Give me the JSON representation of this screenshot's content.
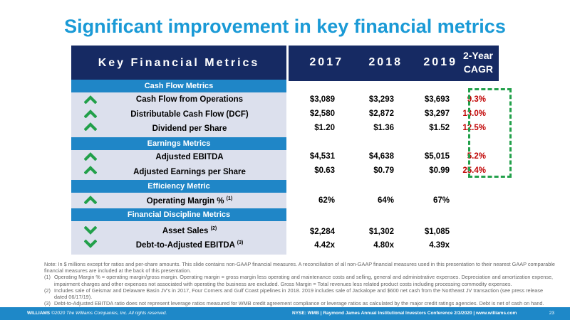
{
  "title": "Significant improvement in key financial metrics",
  "header": {
    "metrics_label": "Key Financial Metrics",
    "years": [
      "2017",
      "2018",
      "2019"
    ],
    "cagr_line1": "2-Year",
    "cagr_line2": "CAGR"
  },
  "sections": {
    "cash_flow": "Cash Flow Metrics",
    "earnings": "Earnings Metrics",
    "efficiency": "Efficiency Metric",
    "discipline": "Financial Discipline Metrics"
  },
  "rows": [
    {
      "label": "Cash Flow from Operations",
      "sup": "",
      "v2017": "$3,089",
      "v2018": "$3,293",
      "v2019": "$3,693",
      "cagr": "9.3%",
      "direction": "up"
    },
    {
      "label": "Distributable Cash Flow (DCF)",
      "sup": "",
      "v2017": "$2,580",
      "v2018": "$2,872",
      "v2019": "$3,297",
      "cagr": "13.0%",
      "direction": "up"
    },
    {
      "label": "Dividend per Share",
      "sup": "",
      "v2017": "$1.20",
      "v2018": "$1.36",
      "v2019": "$1.52",
      "cagr": "12.5%",
      "direction": "up"
    },
    {
      "label": "Adjusted EBITDA",
      "sup": "",
      "v2017": "$4,531",
      "v2018": "$4,638",
      "v2019": "$5,015",
      "cagr": "5.2%",
      "direction": "up"
    },
    {
      "label": "Adjusted Earnings per Share",
      "sup": "",
      "v2017": "$0.63",
      "v2018": "$0.79",
      "v2019": "$0.99",
      "cagr": "25.4%",
      "direction": "up"
    },
    {
      "label": "Operating Margin %",
      "sup": "(1)",
      "v2017": "62%",
      "v2018": "64%",
      "v2019": "67%",
      "cagr": "",
      "direction": "up"
    },
    {
      "label": "Asset Sales",
      "sup": "(2)",
      "v2017": "$2,284",
      "v2018": "$1,302",
      "v2019": "$1,085",
      "cagr": "",
      "direction": "down"
    },
    {
      "label": "Debt-to-Adjusted EBITDA",
      "sup": "(3)",
      "v2017": "4.42x",
      "v2018": "4.80x",
      "v2019": "4.39x",
      "cagr": "",
      "direction": "down"
    }
  ],
  "notes": {
    "intro": "Note: In $ millions except for ratios and per-share amounts. This slide contains non-GAAP financial measures. A reconciliation of all non-GAAP financial measures used in this presentation to their nearest GAAP comparable financial measures are included at the back of this presentation.",
    "items": [
      {
        "num": "(1)",
        "text": "Operating Margin % = operating margin/gross margin. Operating margin = gross margin less operating and maintenance costs and selling, general and administrative expenses. Depreciation and amortization expense, impairment charges and other expenses not associated with operating the business are excluded. Gross Margin = Total revenues less related product costs including processing commodity expenses."
      },
      {
        "num": "(2)",
        "text": "Includes sale of Geismar and Delaware Basin JV's in 2017, Four Corners and Gulf Coast pipelines in 2018. 2019 includes sale of Jackalope and $600 net cash from the Northeast JV transaction (see press release dated 06/17/19)."
      },
      {
        "num": "(3)",
        "text": "Debt-to-Adjusted EBITDA ratio does not represent leverage ratios measured for WMB credit agreement compliance or leverage ratios as calculated by the major credit ratings agencies. Debt is net of cash on hand."
      }
    ]
  },
  "footer": {
    "left_brand": "WILLIAMS",
    "left_rest": "©2020 The Williams Companies, Inc. All rights reserved.",
    "right": "NYSE: WMB  |  Raymond James Annual Institutional Investors Conference 2/3/2020  |  www.williams.com",
    "page": "23"
  },
  "colors": {
    "navy": "#162a63",
    "blue": "#1f86c7",
    "green": "#22a04a",
    "red": "#c00000",
    "lavender": "#dce0ed"
  }
}
